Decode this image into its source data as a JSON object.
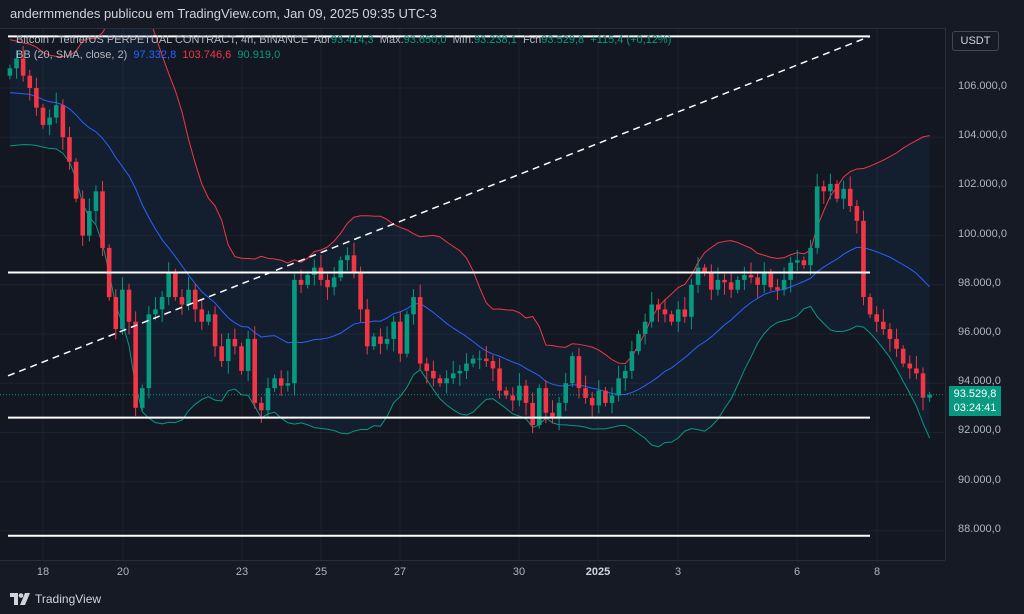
{
  "header": {
    "published": "andermmendes publicou em TradingView.com, Jan 09, 2025 09:35 UTC-3"
  },
  "legend": {
    "symbol": "Bitcoin / TetherUS PERPETUAL CONTRACT, 4h, BINANCE",
    "open_label": "Abr",
    "open": "93.414,3",
    "high_label": "Máx.",
    "high": "93.650,0",
    "low_label": "Mín.",
    "low": "93.238,1",
    "close_label": "Fch",
    "close": "93.529,8",
    "change": "+115,4 (+0,12%)",
    "bb_label": "BB (20, SMA, close, 2)",
    "bb_basis": "97.332,8",
    "bb_upper": "103.746,6",
    "bb_lower": "90.919,0"
  },
  "price_axis": {
    "currency": "USDT",
    "labels": [
      "106.000,0",
      "104.000,0",
      "102.000,0",
      "100.000,0",
      "98.000,0",
      "96.000,0",
      "94.000,0",
      "92.000,0",
      "90.000,0",
      "88.000,0"
    ],
    "current_price": "93.529,8",
    "countdown": "03:24:41"
  },
  "time_axis": {
    "labels": [
      "18",
      "20",
      "23",
      "25",
      "27",
      "30",
      "2025",
      "3",
      "6",
      "8"
    ]
  },
  "footer": {
    "brand": "TradingView"
  },
  "colors": {
    "up": "#089981",
    "down": "#f23645",
    "bb_basis": "#2962ff",
    "bb_upper": "#f23645",
    "bb_lower": "#089981",
    "background": "#131722"
  },
  "chart_data": {
    "type": "candlestick",
    "symbol": "BTCUSDT.P",
    "timeframe": "4h",
    "yrange": [
      86500,
      108700
    ],
    "closes": [
      106800,
      107200,
      106500,
      106000,
      105200,
      104500,
      104800,
      105300,
      104000,
      103000,
      101500,
      100000,
      101000,
      101800,
      99500,
      97500,
      96200,
      97800,
      96500,
      93000,
      93800,
      96800,
      97000,
      97500,
      98500,
      97500,
      97200,
      97800,
      97000,
      96500,
      96800,
      95500,
      94900,
      95800,
      95500,
      94500,
      95800,
      93200,
      92900,
      93800,
      94200,
      93900,
      94000,
      98200,
      98000,
      98400,
      98700,
      98200,
      97900,
      98300,
      99000,
      99200,
      98500,
      97000,
      95500,
      95900,
      95600,
      95800,
      96500,
      95200,
      96800,
      97500,
      94800,
      94500,
      94200,
      94000,
      94200,
      94400,
      94500,
      94800,
      95000,
      95000,
      94900,
      94600,
      93700,
      93500,
      93300,
      93900,
      93200,
      92300,
      93800,
      92800,
      92600,
      93200,
      94000,
      95100,
      93800,
      93400,
      93100,
      93700,
      93200,
      93500,
      94200,
      94500,
      95300,
      96000,
      96500,
      97200,
      97000,
      96800,
      96500,
      97000,
      96700,
      98000,
      98700,
      98500,
      97800,
      98200,
      98100,
      97800,
      98200,
      98400,
      98300,
      98000,
      98500,
      97900,
      97800,
      98200,
      98900,
      99000,
      98800,
      99500,
      102000,
      101800,
      102100,
      101500,
      101900,
      101200,
      100600,
      97500,
      96800,
      96500,
      96200,
      95800,
      95400,
      94800,
      94600,
      94400,
      93414.3,
      93529.8
    ],
    "last": {
      "open": 93414.3,
      "high": 93650.0,
      "low": 93238.1,
      "close": 93529.8
    },
    "horizontal_levels": [
      108100,
      98500,
      92600,
      87800
    ],
    "trend_line": {
      "from_price": 94300,
      "to_price": 108100,
      "style": "dashed"
    },
    "indicator": {
      "name": "BB",
      "length": 20,
      "type": "SMA",
      "source": "close",
      "mult": 2
    }
  }
}
